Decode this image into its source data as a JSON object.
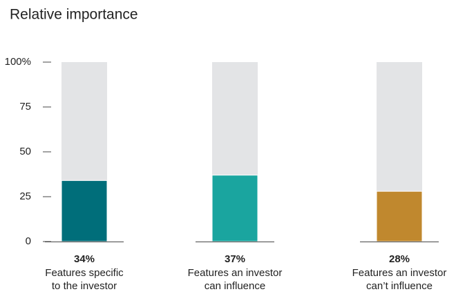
{
  "chart_data": {
    "type": "bar",
    "title": "Relative importance",
    "categories": [
      [
        "Features specific",
        "to the investor"
      ],
      [
        "Features an investor",
        "can influence"
      ],
      [
        "Features an investor",
        "can’t influence"
      ]
    ],
    "values": [
      34,
      37,
      28
    ],
    "value_labels": [
      "34%",
      "37%",
      "28%"
    ],
    "colors": [
      "#006e7a",
      "#1aa59f",
      "#c0882e"
    ],
    "track_color": "#e3e4e6",
    "ylim": [
      0,
      100
    ],
    "yticks": [
      0,
      25,
      50,
      75,
      {
        "value": 100,
        "label": "100%"
      }
    ]
  }
}
